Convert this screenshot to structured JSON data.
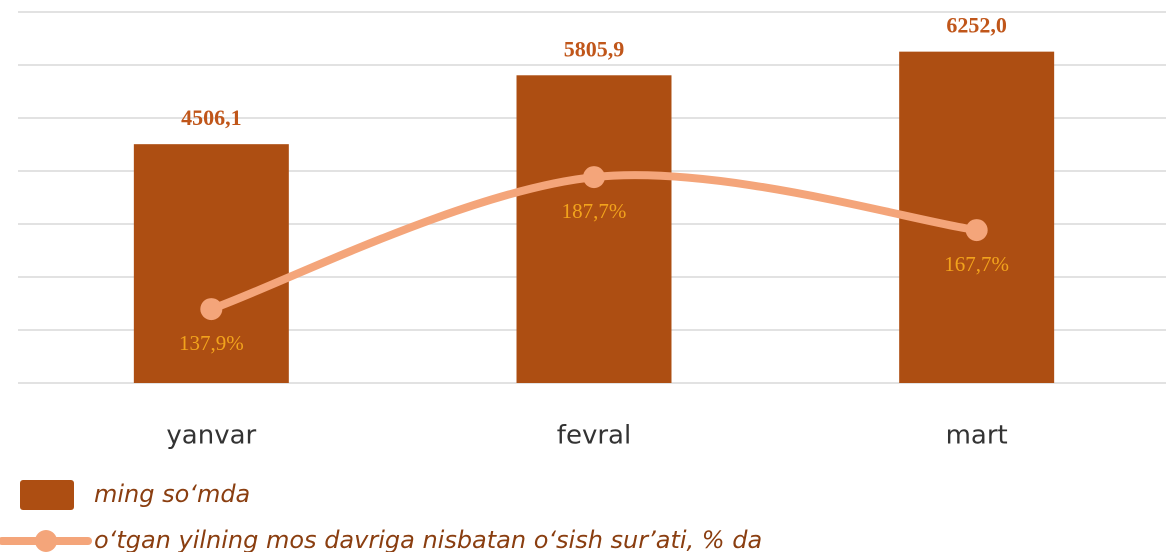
{
  "chart_data": {
    "type": "bar",
    "categories": [
      "yanvar",
      "fevral",
      "mart"
    ],
    "series": [
      {
        "name": "ming so‘mda",
        "type": "bar",
        "color": "#ad4e12",
        "values": [
          4506.1,
          5805.9,
          6252.0
        ],
        "value_labels": [
          "4506,1",
          "5805,9",
          "6252,0"
        ]
      },
      {
        "name": "o‘tgan yilning mos davriga nisbatan o‘sish sur’ati, % da",
        "type": "line",
        "axis": "y2",
        "color": "#f4a57a",
        "values": [
          137.9,
          187.7,
          167.7
        ],
        "value_labels": [
          "137,9%",
          "187,7%",
          "167,7%"
        ]
      }
    ],
    "ylim": [
      0,
      7000
    ],
    "yticks": [
      0,
      1000,
      2000,
      3000,
      4000,
      5000,
      6000,
      7000
    ],
    "y2lim": [
      110,
      250
    ],
    "grid": true
  }
}
